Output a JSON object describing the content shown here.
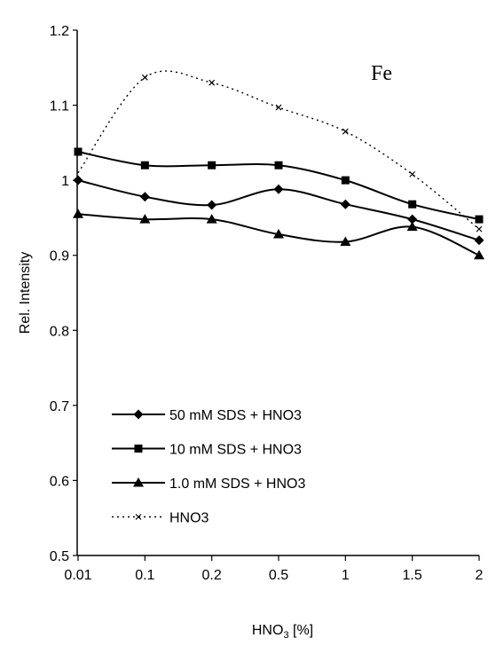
{
  "chart_data": {
    "type": "line",
    "title": "",
    "annotation": "Fe",
    "xlabel": "HNO",
    "xlabel_subscript": "3",
    "xlabel_unit": " [%]",
    "ylabel": "Rel. Intensity",
    "categories": [
      "0.01",
      "0.1",
      "0.2",
      "0.5",
      "1",
      "1.5",
      "2"
    ],
    "ylim": [
      0.5,
      1.2
    ],
    "yticks": [
      "0.5",
      "0.6",
      "0.7",
      "0.8",
      "0.9",
      "1",
      "1.1",
      "1.2"
    ],
    "grid": false,
    "legend_position": "bottom-left",
    "series": [
      {
        "name": "50 mM SDS + HNO3",
        "marker": "diamond",
        "line_style": "solid",
        "color": "#000000",
        "values": [
          1.0,
          0.978,
          0.967,
          0.988,
          0.968,
          0.948,
          0.92
        ]
      },
      {
        "name": "10 mM SDS + HNO3",
        "marker": "square",
        "line_style": "solid",
        "color": "#000000",
        "values": [
          1.038,
          1.02,
          1.02,
          1.02,
          1.0,
          0.968,
          0.948
        ]
      },
      {
        "name": "1.0 mM SDS + HNO3",
        "marker": "triangle",
        "line_style": "solid",
        "color": "#000000",
        "values": [
          0.955,
          0.948,
          0.948,
          0.928,
          0.918,
          0.938,
          0.9
        ]
      },
      {
        "name": "HNO3",
        "marker": "x",
        "line_style": "dotted",
        "color": "#000000",
        "values": [
          1.01,
          1.137,
          1.13,
          1.097,
          1.065,
          1.008,
          0.935
        ]
      }
    ]
  }
}
